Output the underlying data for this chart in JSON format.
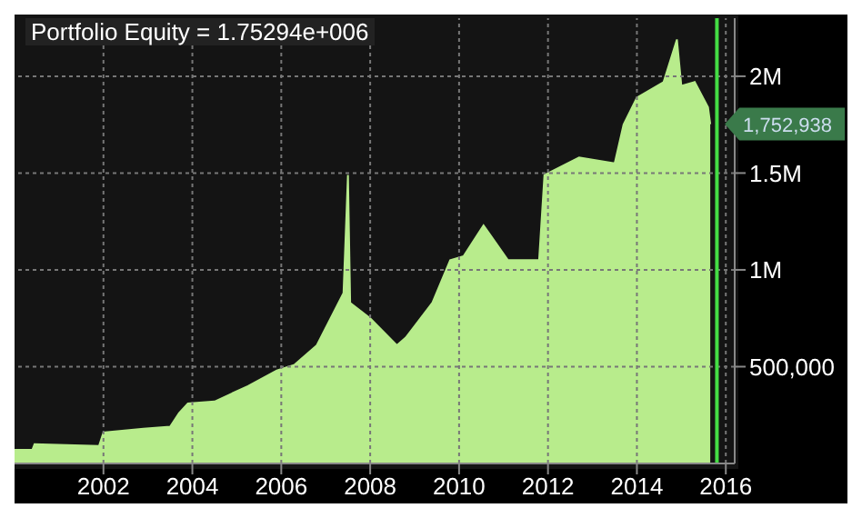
{
  "chart_data": {
    "type": "area",
    "title": "Portfolio Equity = 1.75294e+006",
    "x": [
      2000.0,
      2000.4,
      2000.45,
      2001.9,
      2002.0,
      2002.9,
      2003.5,
      2003.7,
      2003.9,
      2004.5,
      2005.25,
      2005.9,
      2006.3,
      2006.8,
      2007.4,
      2007.5,
      2007.55,
      2008.0,
      2008.6,
      2008.8,
      2009.4,
      2009.8,
      2010.1,
      2010.55,
      2011.1,
      2011.8,
      2011.92,
      2012.7,
      2013.5,
      2013.7,
      2014.0,
      2014.6,
      2014.9,
      2015.0,
      2015.3,
      2015.6,
      2015.65
    ],
    "series": [
      {
        "color": "#b8ec8c",
        "values": [
          70000,
          70000,
          100000,
          90000,
          160000,
          180000,
          190000,
          260000,
          310000,
          320000,
          400000,
          480000,
          510000,
          610000,
          880000,
          1490000,
          830000,
          750000,
          610000,
          650000,
          830000,
          1050000,
          1070000,
          1230000,
          1050000,
          1050000,
          1490000,
          1580000,
          1550000,
          1750000,
          1890000,
          1970000,
          2190000,
          1950000,
          1970000,
          1840000,
          1752938
        ]
      }
    ],
    "ylim": [
      0,
      2300000
    ],
    "yticks": [
      {
        "value": 500000,
        "label": "500,000"
      },
      {
        "value": 1000000,
        "label": "1M"
      },
      {
        "value": 1500000,
        "label": "1.5M"
      },
      {
        "value": 2000000,
        "label": "2M"
      }
    ],
    "xlim": [
      2000,
      2016.2
    ],
    "xticks": [
      2002,
      2004,
      2006,
      2008,
      2010,
      2012,
      2014,
      2016
    ],
    "grid": true,
    "legend": false,
    "annotations": [
      {
        "text": "1,752,938",
        "x": 2015.65,
        "y": 1752938
      }
    ],
    "ref_lines": [
      {
        "axis": "x",
        "value": 2015.8,
        "color": "#44dd44"
      }
    ]
  }
}
